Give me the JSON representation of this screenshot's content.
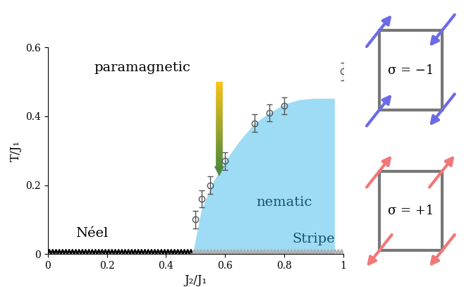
{
  "chart_data": {
    "type": "scatter",
    "x_label": "J₂/J₁",
    "y_label": "T/J₁",
    "xlim": [
      0,
      1
    ],
    "ylim": [
      0,
      0.6
    ],
    "xticks": [
      0,
      0.2,
      0.4,
      0.6,
      0.8,
      1
    ],
    "yticks": [
      0,
      0.2,
      0.4,
      0.6
    ],
    "x": [
      0.5,
      0.52,
      0.55,
      0.6,
      0.7,
      0.75,
      0.8,
      1.0
    ],
    "values": [
      0.1,
      0.16,
      0.2,
      0.27,
      0.38,
      0.41,
      0.43,
      0.53
    ],
    "errors": [
      0.025,
      0.025,
      0.025,
      0.025,
      0.025,
      0.025,
      0.025,
      0.025
    ],
    "color": "#555555",
    "marker": "o",
    "region": {
      "label": "nematic",
      "color": "#9edcf5",
      "x": [
        0.49,
        0.52,
        0.56,
        0.6,
        0.65,
        0.7,
        0.75,
        0.8,
        0.85,
        0.9,
        0.97
      ],
      "upper": [
        0.0,
        0.13,
        0.21,
        0.27,
        0.33,
        0.38,
        0.41,
        0.435,
        0.448,
        0.452,
        0.452
      ]
    },
    "background_label": "paramagnetic",
    "phases": [
      {
        "label": "Néel",
        "x": [
          0,
          0.49
        ],
        "color": "#000000",
        "line_style": "zigzag"
      },
      {
        "label": "Stripe",
        "x": [
          0.49,
          1
        ],
        "color": "#b0b0b0",
        "line_style": "zigzag"
      }
    ],
    "arrow": {
      "x": 0.58,
      "y": [
        0.5,
        0.22
      ],
      "colors": [
        "#f7c21a",
        "#4f8a3c"
      ]
    },
    "plaquettes": [
      {
        "label": "σ = −1",
        "color": "#6b6be8"
      },
      {
        "label": "σ = +1",
        "color": "#f07878"
      }
    ]
  }
}
